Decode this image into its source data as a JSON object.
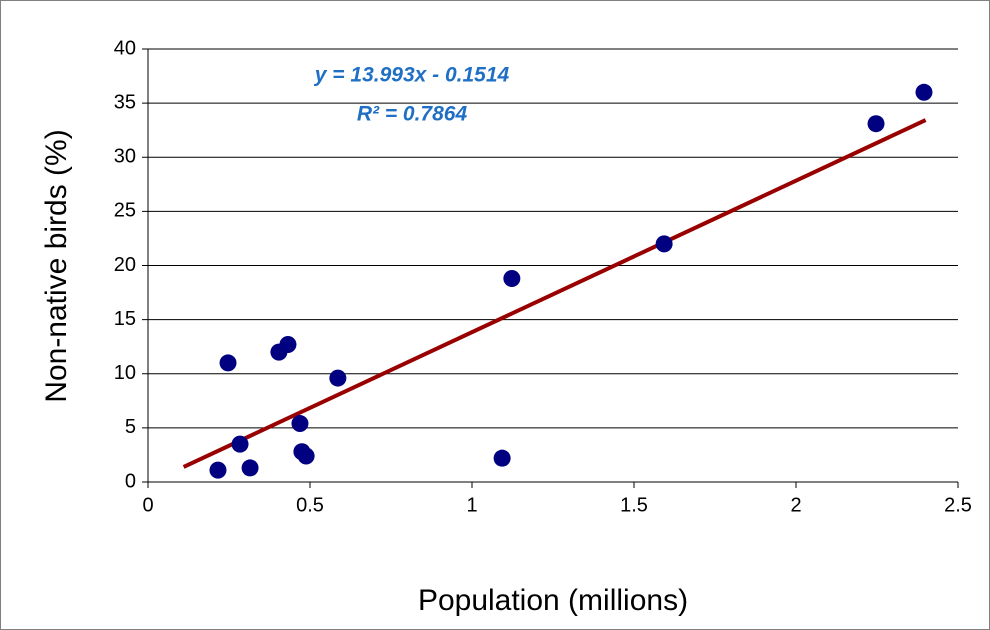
{
  "chart_data": {
    "type": "scatter",
    "x_label": "Population (millions)",
    "y_label": "Non-native birds (%)",
    "equation": "y = 13.993x - 0.1514",
    "r2_label": "R² = 0.7864",
    "x": [
      0.216,
      0.247,
      0.284,
      0.315,
      0.404,
      0.432,
      0.469,
      0.475,
      0.488,
      0.586,
      1.093,
      1.123,
      1.593,
      2.247,
      2.395
    ],
    "values": [
      1.1,
      11,
      3.5,
      1.3,
      12,
      12.7,
      5.4,
      2.8,
      2.4,
      9.6,
      2.2,
      18.8,
      22,
      33.1,
      36
    ],
    "color": "#000080",
    "trendline": {
      "slope": 13.993,
      "intercept": -0.1514,
      "x_range": [
        0.11,
        2.4
      ],
      "color": "#990000"
    },
    "xlim": [
      0,
      2.5
    ],
    "xticks": [
      0,
      0.5,
      1,
      1.5,
      2,
      2.5
    ],
    "ylim": [
      0,
      40
    ],
    "yticks": [
      0,
      5,
      10,
      15,
      20,
      25,
      30,
      35,
      40
    ],
    "grid": true
  }
}
